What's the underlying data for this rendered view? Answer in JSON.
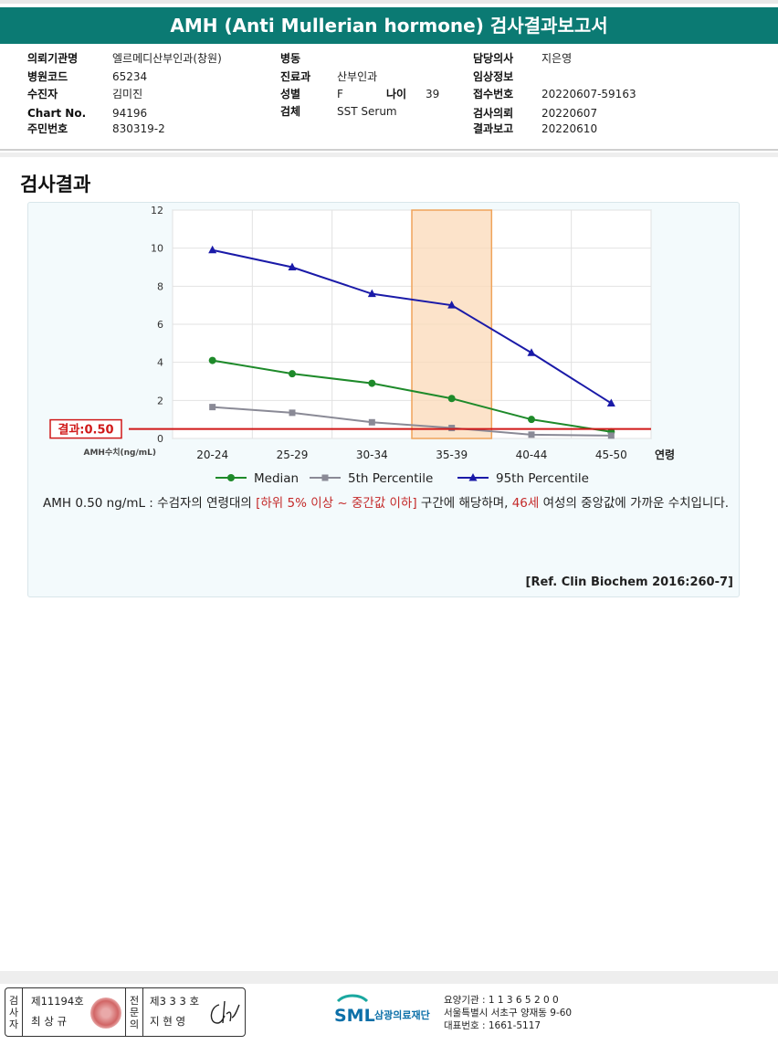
{
  "report_title": "AMH (Anti Mullerian hormone) 검사결과보고서",
  "info": {
    "col1": [
      {
        "label": "의뢰기관명",
        "value": "엘르메디산부인과(창원)"
      },
      {
        "label": "병원코드",
        "value": "65234"
      },
      {
        "label": "수진자",
        "value": "김미진"
      },
      {
        "label": "Chart No.",
        "value": "94196"
      },
      {
        "label": "주민번호",
        "value": "830319-2"
      }
    ],
    "col2": [
      {
        "label": "병동",
        "value": ""
      },
      {
        "label": "진료과",
        "value": "산부인과"
      },
      {
        "label": "성별",
        "value": "F"
      },
      {
        "label": "검체",
        "value": "SST Serum"
      }
    ],
    "age": {
      "label": "나이",
      "value": "39"
    },
    "col3": [
      {
        "label": "담당의사",
        "value": "지은영"
      },
      {
        "label": "임상정보",
        "value": ""
      },
      {
        "label": "접수번호",
        "value": "20220607-59163"
      },
      {
        "label": "검사의뢰",
        "value": "20220607"
      },
      {
        "label": "결과보고",
        "value": "20220610"
      }
    ]
  },
  "section_title": "검사결과",
  "chart_data": {
    "type": "line",
    "categories": [
      "20-24",
      "25-29",
      "30-34",
      "35-39",
      "40-44",
      "45-50"
    ],
    "xlabel": "연령",
    "ylabel": "AMH수치(ng/mL)",
    "ylim": [
      0,
      12
    ],
    "yticks": [
      0,
      2,
      4,
      6,
      8,
      10,
      12
    ],
    "grid": true,
    "legend_position": "bottom",
    "highlight_category": "35-39",
    "result": {
      "label": "결과:0.50",
      "value": 0.5
    },
    "series": [
      {
        "name": "Median",
        "color": "#1e8a2a",
        "marker": "circle",
        "values": [
          4.1,
          3.4,
          2.9,
          2.1,
          1.0,
          0.35
        ]
      },
      {
        "name": "5th Percentile",
        "color": "#8a8a96",
        "marker": "square",
        "values": [
          1.65,
          1.35,
          0.85,
          0.55,
          0.2,
          0.15
        ]
      },
      {
        "name": "95th Percentile",
        "color": "#1a1aa8",
        "marker": "triangle",
        "values": [
          9.9,
          9.0,
          7.6,
          7.0,
          4.5,
          1.85
        ]
      }
    ]
  },
  "description": {
    "part1": "AMH  0.50 ng/mL : 수검자의 연령대의 ",
    "highlight1": "[하위 5% 이상 ~ 중간값 이하]",
    "part2": "  구간에 해당하며, ",
    "highlight2": "46세",
    "part3": " 여성의 중앙값에 가까운 수치입니다."
  },
  "reference": "[Ref. Clin Biochem 2016:260-7]",
  "footer": {
    "inspector_label": "검사자",
    "inspector_no": "제11194호",
    "inspector_name": "최 상 규",
    "confirmer_label": "전문의",
    "confirmer_no": "제3 3 3 호",
    "confirmer_name": "지 현 영",
    "logo_text": "SML",
    "logo_org": "삼광의료재단",
    "code": "요양기관 : 1 1 3 6 5 2 0 0",
    "address": "서울특별시 서초구 양재동 9-60",
    "phone": "대표번호 : 1661-5117"
  }
}
